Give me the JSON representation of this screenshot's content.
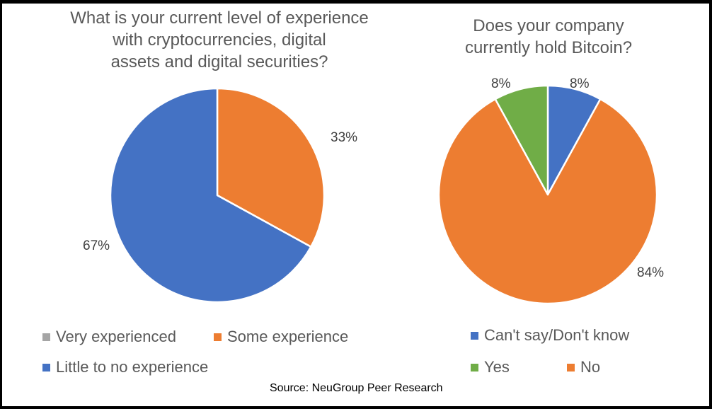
{
  "chart_data": [
    {
      "type": "pie",
      "title": "What is your current level of experience\nwith cryptocurrencies, digital\nassets and digital securities?",
      "categories": [
        "Very experienced",
        "Some experience",
        "Little to no experience"
      ],
      "values": [
        0,
        33,
        67
      ],
      "labels": [
        "",
        "33%",
        "67%"
      ],
      "colors": [
        "#A5A5A5",
        "#ED7D31",
        "#4472C4"
      ],
      "legend": "bottom"
    },
    {
      "type": "pie",
      "title": "Does your company\ncurrently hold Bitcoin?",
      "categories": [
        "Can't say/Don't know",
        "Yes",
        "No"
      ],
      "values": [
        8,
        8,
        84
      ],
      "labels": [
        "8%",
        "8%",
        "84%"
      ],
      "colors": [
        "#4472C4",
        "#70AD47",
        "#ED7D31"
      ],
      "slice_order_clockwise_from_top": [
        "Can't say/Don't know",
        "No",
        "Yes"
      ],
      "legend": "bottom"
    }
  ],
  "source": "Source: NeuGroup Peer Research"
}
